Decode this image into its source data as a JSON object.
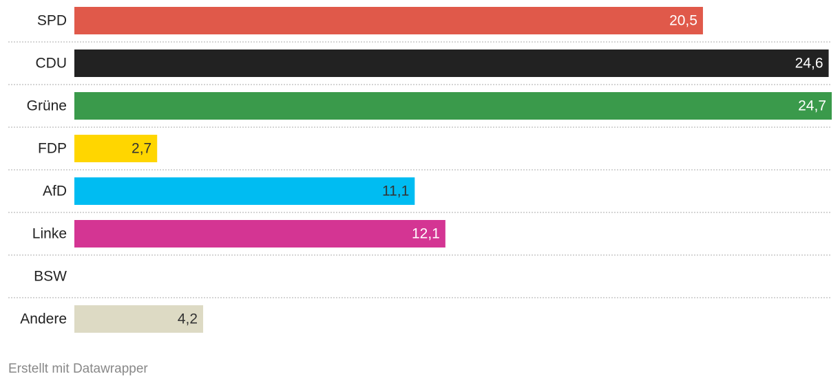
{
  "chart_data": {
    "type": "bar",
    "orientation": "horizontal",
    "categories": [
      "SPD",
      "CDU",
      "Grüne",
      "FDP",
      "AfD",
      "Linke",
      "BSW",
      "Andere"
    ],
    "values": [
      20.5,
      24.6,
      24.7,
      2.7,
      11.1,
      12.1,
      null,
      4.2
    ],
    "value_labels": [
      "20,5",
      "24,6",
      "24,7",
      "2,7",
      "11,1",
      "12,1",
      null,
      "4,2"
    ],
    "colors": [
      "#e0594a",
      "#222222",
      "#3a9a4b",
      "#ffd600",
      "#00bcf2",
      "#d43593",
      null,
      "#dddac4"
    ],
    "label_colors": [
      "#ffffff",
      "#ffffff",
      "#ffffff",
      "#333333",
      "#333333",
      "#ffffff",
      null,
      "#333333"
    ],
    "footer": "Erstellt mit Datawrapper"
  }
}
